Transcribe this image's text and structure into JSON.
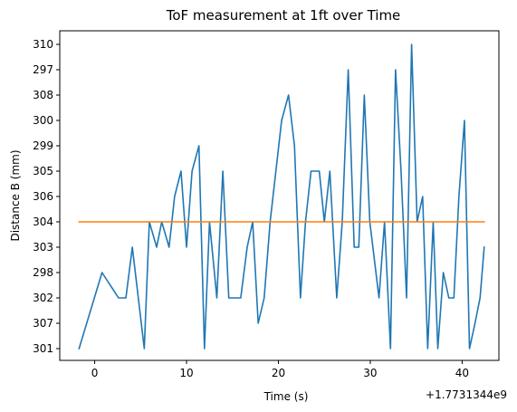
{
  "chart_data": {
    "type": "line",
    "title": "ToF measurement at 1ft over Time",
    "xlabel": "Time (s)",
    "ylabel": "Distance B (mm)",
    "x_offset_label": "+1.7731344e9",
    "x_ticks": [
      0,
      10,
      20,
      30,
      40
    ],
    "xlim": [
      -3.8,
      44.0
    ],
    "y_categories": [
      "301",
      "307",
      "302",
      "298",
      "303",
      "304",
      "306",
      "305",
      "299",
      "300",
      "308",
      "297",
      "310"
    ],
    "grid": false,
    "series": [
      {
        "color": "#1f77b4",
        "x": [
          -1.7,
          0.8,
          2.6,
          3.4,
          4.1,
          5.4,
          5.95,
          6.75,
          7.3,
          8.1,
          8.7,
          9.4,
          10.0,
          10.6,
          11.35,
          11.95,
          12.5,
          13.3,
          13.95,
          14.6,
          15.9,
          16.6,
          17.2,
          17.8,
          18.45,
          19.1,
          20.35,
          21.1,
          21.75,
          22.4,
          22.95,
          23.55,
          24.45,
          25.0,
          25.6,
          26.35,
          26.95,
          27.6,
          28.25,
          28.75,
          29.35,
          29.95,
          30.95,
          31.55,
          32.2,
          32.75,
          33.35,
          33.95,
          34.5,
          35.1,
          35.7,
          36.25,
          36.85,
          37.35,
          37.95,
          38.55,
          39.1,
          39.65,
          40.25,
          40.8,
          41.4,
          41.95,
          42.4
        ],
        "y": [
          "301",
          "298",
          "302",
          "302",
          "303",
          "301",
          "304",
          "303",
          "304",
          "303",
          "306",
          "305",
          "303",
          "305",
          "299",
          "301",
          "304",
          "302",
          "305",
          "302",
          "302",
          "303",
          "304",
          "307",
          "302",
          "304",
          "300",
          "308",
          "299",
          "302",
          "304",
          "305",
          "305",
          "304",
          "305",
          "302",
          "304",
          "297",
          "303",
          "303",
          "308",
          "304",
          "302",
          "304",
          "301",
          "297",
          "305",
          "302",
          "310",
          "304",
          "306",
          "301",
          "304",
          "301",
          "298",
          "302",
          "302",
          "306",
          "300",
          "301",
          "307",
          "302",
          "303"
        ]
      },
      {
        "color": "#ff7f0e",
        "x": [
          -1.7,
          42.4
        ],
        "y": [
          "304",
          "304"
        ]
      }
    ]
  }
}
